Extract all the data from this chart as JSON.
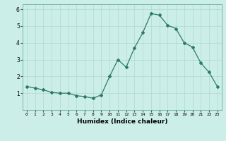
{
  "x": [
    0,
    1,
    2,
    3,
    4,
    5,
    6,
    7,
    8,
    9,
    10,
    11,
    12,
    13,
    14,
    15,
    16,
    17,
    18,
    19,
    20,
    21,
    22,
    23
  ],
  "y": [
    1.4,
    1.3,
    1.2,
    1.05,
    1.0,
    1.0,
    0.85,
    0.8,
    0.7,
    0.9,
    2.0,
    3.0,
    2.55,
    3.7,
    4.6,
    5.75,
    5.65,
    5.05,
    4.85,
    4.0,
    3.75,
    2.8,
    2.25,
    1.4
  ],
  "xlabel": "Humidex (Indice chaleur)",
  "line_color": "#2d7a6a",
  "bg_color": "#cceee8",
  "grid_color": "#b0d8d0",
  "xlim": [
    -0.5,
    23.5
  ],
  "ylim": [
    0,
    6.3
  ],
  "yticks": [
    1,
    2,
    3,
    4,
    5,
    6
  ],
  "xticks": [
    0,
    1,
    2,
    3,
    4,
    5,
    6,
    7,
    8,
    9,
    10,
    11,
    12,
    13,
    14,
    15,
    16,
    17,
    18,
    19,
    20,
    21,
    22,
    23
  ],
  "marker": "D",
  "marker_size": 2.0,
  "line_width": 0.9
}
